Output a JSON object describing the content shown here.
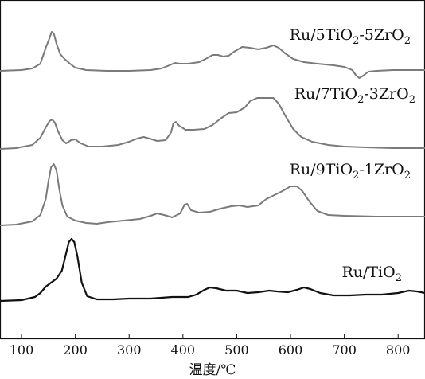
{
  "chart_data": {
    "type": "line",
    "xlabel": "温度/℃",
    "ylabel": "",
    "xlim": [
      60,
      850
    ],
    "xticks": [
      100,
      200,
      300,
      400,
      500,
      600,
      700,
      800
    ],
    "y_ticks_shown": false,
    "grid": false,
    "legend": "none (labels placed next to each curve)",
    "stacked_offset_curves": true,
    "series": [
      {
        "name": "Ru/5TiO2-5ZrO2",
        "label_parts": [
          [
            "Ru/5TiO",
            "n"
          ],
          [
            "2",
            "sub"
          ],
          [
            "-5ZrO",
            "n"
          ],
          [
            "2",
            "sub"
          ]
        ],
        "color": "#7a7a7a",
        "points": [
          [
            60,
            89
          ],
          [
            100,
            88
          ],
          [
            120,
            86
          ],
          [
            135,
            80
          ],
          [
            145,
            60
          ],
          [
            152,
            48
          ],
          [
            156,
            40
          ],
          [
            160,
            42
          ],
          [
            165,
            55
          ],
          [
            172,
            68
          ],
          [
            180,
            74
          ],
          [
            190,
            80
          ],
          [
            200,
            85
          ],
          [
            220,
            88
          ],
          [
            260,
            89
          ],
          [
            300,
            89
          ],
          [
            340,
            88
          ],
          [
            360,
            86
          ],
          [
            375,
            82
          ],
          [
            385,
            79
          ],
          [
            395,
            80
          ],
          [
            410,
            80
          ],
          [
            430,
            78
          ],
          [
            445,
            73
          ],
          [
            455,
            69
          ],
          [
            465,
            69
          ],
          [
            475,
            71
          ],
          [
            485,
            70
          ],
          [
            495,
            65
          ],
          [
            510,
            59
          ],
          [
            525,
            60
          ],
          [
            540,
            62
          ],
          [
            555,
            60
          ],
          [
            568,
            57
          ],
          [
            578,
            60
          ],
          [
            590,
            67
          ],
          [
            605,
            74
          ],
          [
            625,
            78
          ],
          [
            650,
            80
          ],
          [
            680,
            82
          ],
          [
            700,
            84
          ],
          [
            715,
            88
          ],
          [
            722,
            95
          ],
          [
            728,
            98
          ],
          [
            735,
            95
          ],
          [
            745,
            90
          ],
          [
            760,
            89
          ],
          [
            790,
            88
          ],
          [
            820,
            88
          ],
          [
            850,
            88
          ]
        ]
      },
      {
        "name": "Ru/7TiO2-3ZrO2",
        "label_parts": [
          [
            "Ru/7TiO",
            "n"
          ],
          [
            "2",
            "sub"
          ],
          [
            "-3ZrO",
            "n"
          ],
          [
            "2",
            "sub"
          ]
        ],
        "color": "#7a7a7a",
        "points": [
          [
            60,
            187
          ],
          [
            90,
            186
          ],
          [
            120,
            182
          ],
          [
            135,
            173
          ],
          [
            145,
            160
          ],
          [
            152,
            152
          ],
          [
            157,
            150
          ],
          [
            162,
            154
          ],
          [
            168,
            165
          ],
          [
            176,
            176
          ],
          [
            183,
            180
          ],
          [
            192,
            176
          ],
          [
            200,
            175
          ],
          [
            210,
            180
          ],
          [
            225,
            184
          ],
          [
            250,
            184
          ],
          [
            280,
            182
          ],
          [
            300,
            178
          ],
          [
            315,
            174
          ],
          [
            327,
            172
          ],
          [
            338,
            174
          ],
          [
            352,
            177
          ],
          [
            368,
            176
          ],
          [
            378,
            166
          ],
          [
            382,
            155
          ],
          [
            387,
            153
          ],
          [
            393,
            158
          ],
          [
            405,
            163
          ],
          [
            420,
            163
          ],
          [
            440,
            162
          ],
          [
            455,
            157
          ],
          [
            470,
            149
          ],
          [
            485,
            142
          ],
          [
            500,
            141
          ],
          [
            515,
            135
          ],
          [
            525,
            127
          ],
          [
            538,
            123
          ],
          [
            555,
            123
          ],
          [
            568,
            123
          ],
          [
            578,
            130
          ],
          [
            590,
            145
          ],
          [
            605,
            162
          ],
          [
            620,
            172
          ],
          [
            640,
            178
          ],
          [
            670,
            182
          ],
          [
            700,
            184
          ],
          [
            740,
            185
          ],
          [
            790,
            186
          ],
          [
            850,
            186
          ]
        ]
      },
      {
        "name": "Ru/9TiO2-1ZrO2",
        "label_parts": [
          [
            "Ru/9TiO",
            "n"
          ],
          [
            "2",
            "sub"
          ],
          [
            "-1ZrO",
            "n"
          ],
          [
            "2",
            "sub"
          ]
        ],
        "color": "#7a7a7a",
        "points": [
          [
            60,
            283
          ],
          [
            90,
            282
          ],
          [
            120,
            278
          ],
          [
            135,
            270
          ],
          [
            145,
            250
          ],
          [
            150,
            228
          ],
          [
            155,
            210
          ],
          [
            160,
            206
          ],
          [
            165,
            214
          ],
          [
            170,
            237
          ],
          [
            176,
            258
          ],
          [
            185,
            272
          ],
          [
            200,
            277
          ],
          [
            220,
            280
          ],
          [
            240,
            281
          ],
          [
            260,
            279
          ],
          [
            290,
            277
          ],
          [
            320,
            275
          ],
          [
            340,
            271
          ],
          [
            352,
            268
          ],
          [
            365,
            270
          ],
          [
            380,
            273
          ],
          [
            395,
            268
          ],
          [
            403,
            257
          ],
          [
            408,
            256
          ],
          [
            415,
            264
          ],
          [
            430,
            267
          ],
          [
            450,
            266
          ],
          [
            470,
            262
          ],
          [
            490,
            259
          ],
          [
            505,
            258
          ],
          [
            520,
            260
          ],
          [
            540,
            258
          ],
          [
            555,
            250
          ],
          [
            570,
            245
          ],
          [
            585,
            240
          ],
          [
            600,
            234
          ],
          [
            612,
            234
          ],
          [
            622,
            240
          ],
          [
            635,
            253
          ],
          [
            650,
            265
          ],
          [
            670,
            270
          ],
          [
            700,
            271
          ],
          [
            760,
            272
          ],
          [
            850,
            272
          ]
        ]
      },
      {
        "name": "Ru/TiO2",
        "label_parts": [
          [
            "Ru/TiO",
            "n"
          ],
          [
            "2",
            "sub"
          ]
        ],
        "color": "#111111",
        "points": [
          [
            60,
            378
          ],
          [
            100,
            377
          ],
          [
            125,
            373
          ],
          [
            135,
            368
          ],
          [
            145,
            360
          ],
          [
            155,
            355
          ],
          [
            165,
            350
          ],
          [
            175,
            340
          ],
          [
            183,
            318
          ],
          [
            188,
            304
          ],
          [
            193,
            300
          ],
          [
            198,
            304
          ],
          [
            204,
            322
          ],
          [
            212,
            355
          ],
          [
            222,
            372
          ],
          [
            240,
            376
          ],
          [
            270,
            376
          ],
          [
            300,
            375
          ],
          [
            340,
            375
          ],
          [
            380,
            373
          ],
          [
            410,
            373
          ],
          [
            425,
            370
          ],
          [
            440,
            364
          ],
          [
            450,
            361
          ],
          [
            462,
            362
          ],
          [
            480,
            365
          ],
          [
            500,
            365
          ],
          [
            520,
            368
          ],
          [
            540,
            367
          ],
          [
            560,
            365
          ],
          [
            575,
            366
          ],
          [
            595,
            367
          ],
          [
            612,
            364
          ],
          [
            625,
            361
          ],
          [
            637,
            363
          ],
          [
            655,
            368
          ],
          [
            680,
            371
          ],
          [
            710,
            371
          ],
          [
            740,
            370
          ],
          [
            770,
            370
          ],
          [
            800,
            368
          ],
          [
            820,
            365
          ],
          [
            835,
            366
          ],
          [
            850,
            368
          ]
        ]
      }
    ]
  }
}
